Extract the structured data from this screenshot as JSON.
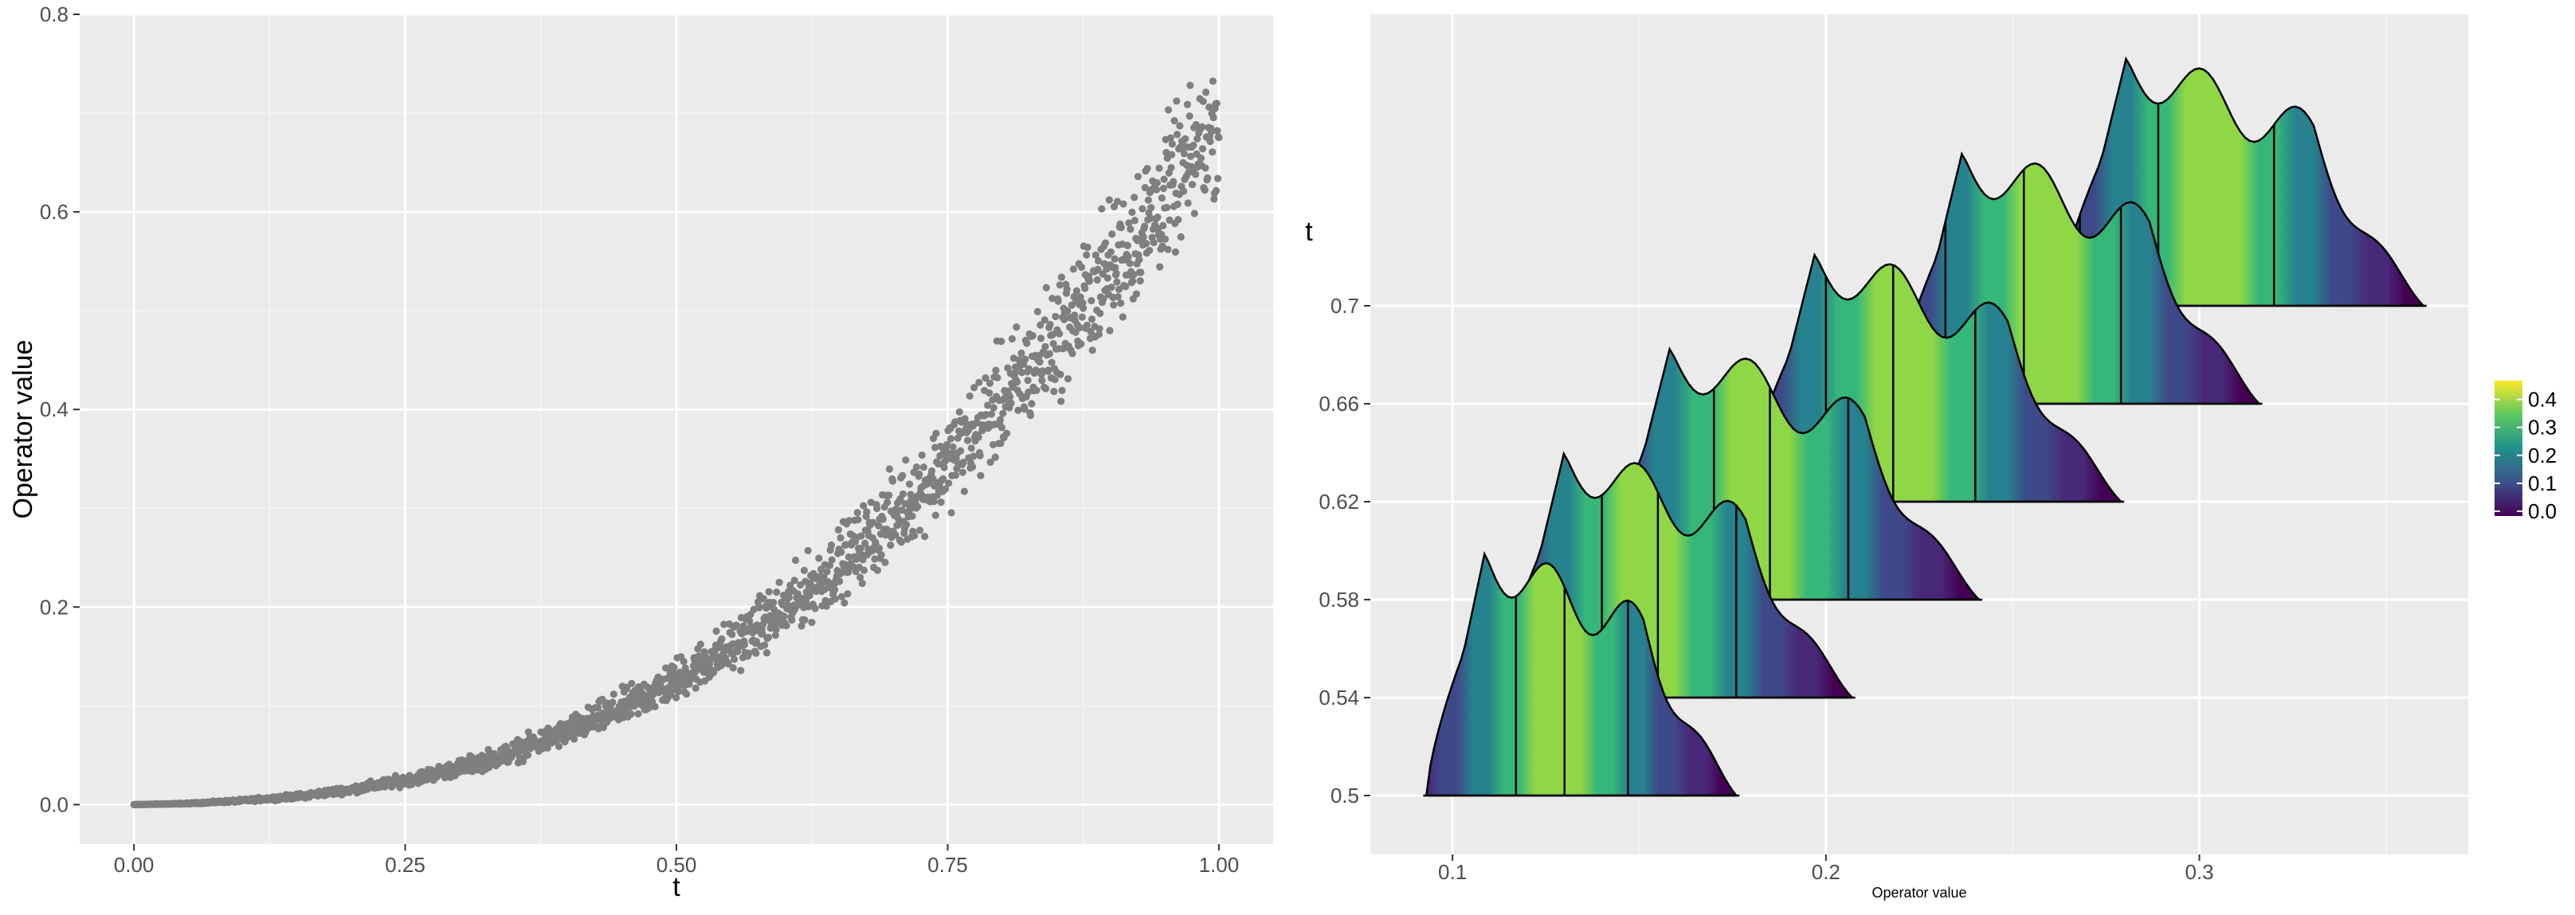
{
  "chart_data": [
    {
      "type": "scatter",
      "xlabel": "t",
      "ylabel": "Operator value",
      "xlim": [
        -0.05,
        1.05
      ],
      "ylim": [
        -0.04,
        0.8
      ],
      "x_ticks": [
        "0.00",
        "0.25",
        "0.50",
        "0.75",
        "1.00"
      ],
      "x_tick_values": [
        0,
        0.25,
        0.5,
        0.75,
        1.0
      ],
      "y_ticks": [
        "0.0",
        "0.2",
        "0.4",
        "0.6",
        "0.8"
      ],
      "y_tick_values": [
        0,
        0.2,
        0.4,
        0.6,
        0.8
      ],
      "point_color": "#7f7f7f",
      "grid": true,
      "x": [
        0.0,
        0.05,
        0.1,
        0.15,
        0.2,
        0.25,
        0.3,
        0.35,
        0.4,
        0.45,
        0.5,
        0.55,
        0.6,
        0.65,
        0.7,
        0.75,
        0.8,
        0.85,
        0.9,
        0.95,
        1.0
      ],
      "y_center": [
        0.0,
        0.001,
        0.004,
        0.008,
        0.015,
        0.024,
        0.037,
        0.053,
        0.073,
        0.097,
        0.125,
        0.158,
        0.196,
        0.24,
        0.29,
        0.345,
        0.405,
        0.47,
        0.54,
        0.61,
        0.69
      ],
      "y_low": [
        0.0,
        0.0005,
        0.002,
        0.005,
        0.01,
        0.017,
        0.026,
        0.038,
        0.055,
        0.074,
        0.097,
        0.124,
        0.157,
        0.193,
        0.235,
        0.282,
        0.333,
        0.39,
        0.45,
        0.52,
        0.6
      ],
      "y_high": [
        0.0,
        0.002,
        0.006,
        0.012,
        0.021,
        0.033,
        0.049,
        0.069,
        0.094,
        0.124,
        0.159,
        0.199,
        0.245,
        0.297,
        0.355,
        0.42,
        0.49,
        0.56,
        0.64,
        0.72,
        0.78
      ]
    },
    {
      "type": "ridgeline",
      "xlabel": "Operator value",
      "ylabel": "t",
      "xlim": [
        0.078,
        0.372
      ],
      "x_ticks": [
        "0.1",
        "0.2",
        "0.3"
      ],
      "x_tick_values": [
        0.1,
        0.2,
        0.3
      ],
      "y_ticks": [
        "0.5",
        "0.54",
        "0.58",
        "0.62",
        "0.66",
        "0.7"
      ],
      "y_tick_values": [
        0.5,
        0.54,
        0.58,
        0.62,
        0.66,
        0.7
      ],
      "grid": true,
      "quantile_lines": true,
      "colorbar": {
        "labels": [
          "0.4",
          "0.3",
          "0.2",
          "0.1",
          "0.0"
        ],
        "values": [
          0.4,
          0.3,
          0.2,
          0.1,
          0.0
        ],
        "min": 0.0,
        "max": 0.45,
        "colors": [
          "#440154",
          "#3b528b",
          "#21918c",
          "#5ec962",
          "#fde725"
        ]
      },
      "series": [
        {
          "t": 0.7,
          "range": [
            0.262,
            0.36
          ],
          "quantiles": [
            0.268,
            0.289,
            0.32
          ],
          "peak": 0.33
        },
        {
          "t": 0.66,
          "range": [
            0.218,
            0.316
          ],
          "quantiles": [
            0.232,
            0.253,
            0.279
          ],
          "peak": 0.334
        },
        {
          "t": 0.62,
          "range": [
            0.178,
            0.279
          ],
          "quantiles": [
            0.2,
            0.218,
            0.24
          ],
          "peak": 0.33
        },
        {
          "t": 0.58,
          "range": [
            0.139,
            0.241
          ],
          "quantiles": [
            0.17,
            0.185,
            0.206
          ],
          "peak": 0.335
        },
        {
          "t": 0.54,
          "range": [
            0.112,
            0.207
          ],
          "quantiles": [
            0.14,
            0.155,
            0.176
          ],
          "peak": 0.326
        },
        {
          "t": 0.5,
          "range": [
            0.093,
            0.176
          ],
          "quantiles": [
            0.117,
            0.13,
            0.147
          ],
          "peak": 0.323
        }
      ]
    }
  ]
}
